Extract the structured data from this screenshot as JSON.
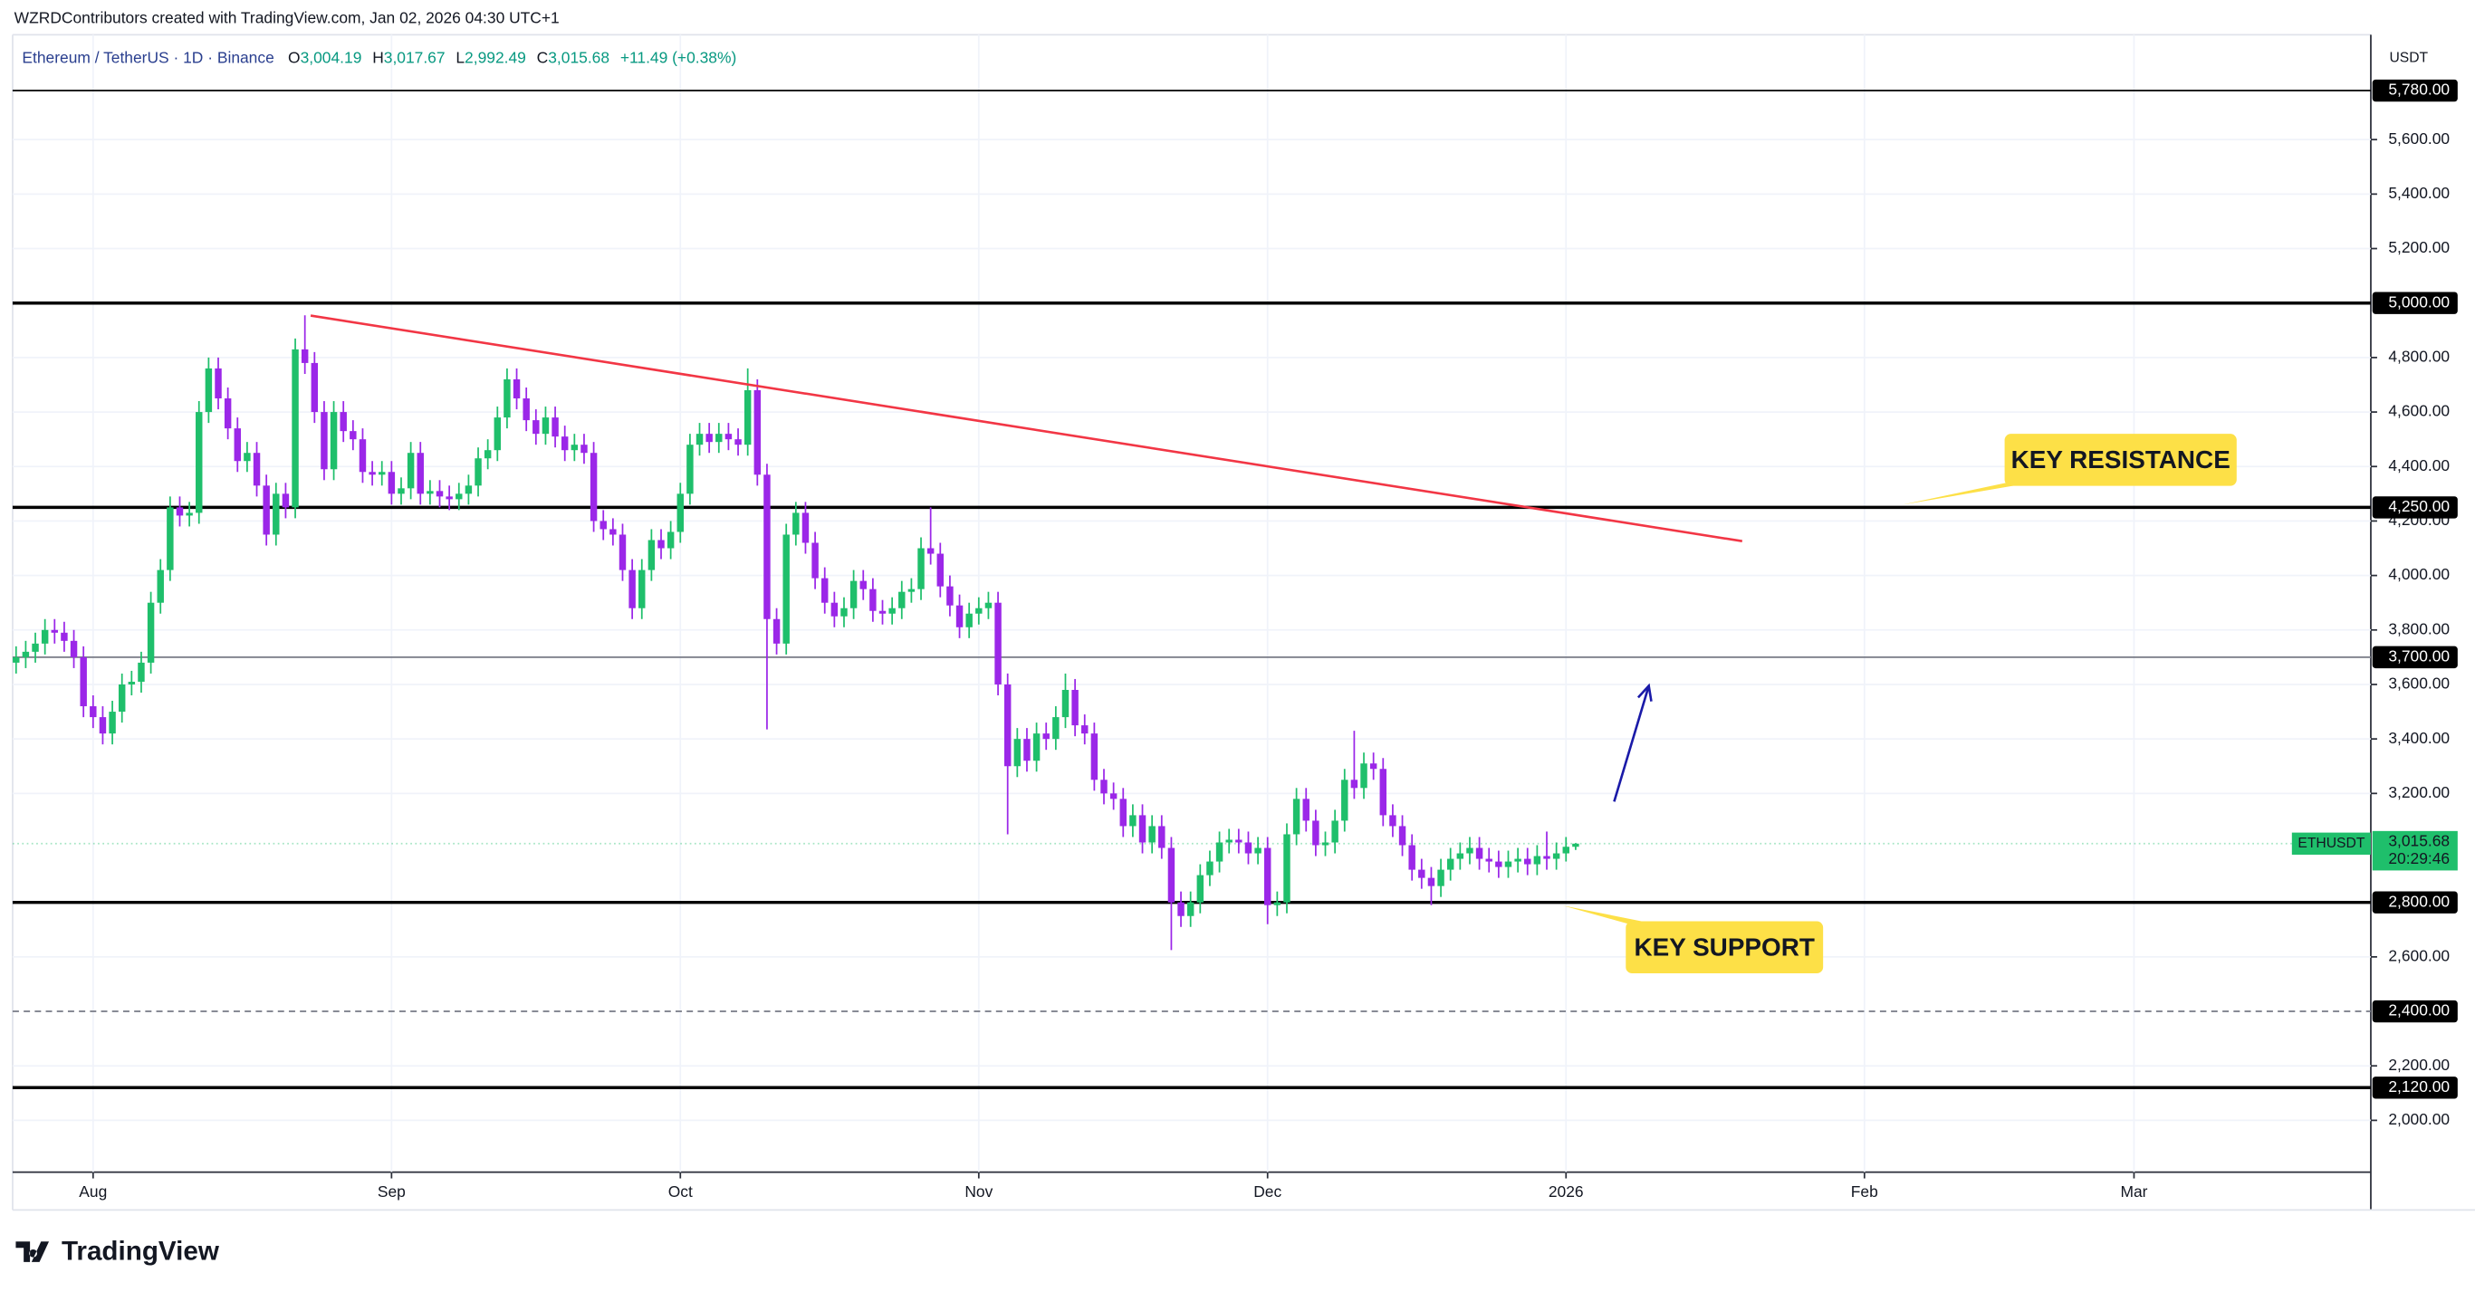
{
  "page": {
    "caption": "WZRDContributors created with TradingView.com, Jan 02, 2026 04:30 UTC+1",
    "logo": "TradingView"
  },
  "chart_data": {
    "type": "candlestick",
    "header": {
      "symbol": "Ethereum / TetherUS · 1D · Binance",
      "open_label": "O",
      "open": "3,004.19",
      "high_label": "H",
      "high": "3,017.67",
      "low_label": "L",
      "low": "2,992.49",
      "close_label": "C",
      "close": "3,015.68",
      "change": "+11.49 (+0.38%)"
    },
    "y_unit": "USDT",
    "up_color": "#1fbf6b",
    "down_color": "#9b27e8",
    "x": [
      0,
      1,
      2,
      3,
      4,
      5,
      6,
      7,
      8,
      9,
      10,
      11,
      12,
      13,
      14,
      15,
      16,
      17,
      18,
      19,
      20,
      21,
      22,
      23,
      24,
      25,
      26,
      27,
      28,
      29,
      30,
      31,
      32,
      33,
      34,
      35,
      36,
      37,
      38,
      39,
      40,
      41,
      42,
      43,
      44,
      45,
      46,
      47,
      48,
      49,
      50,
      51,
      52,
      53,
      54,
      55,
      56,
      57,
      58,
      59,
      60,
      61,
      62,
      63,
      64,
      65,
      66,
      67,
      68,
      69,
      70,
      71,
      72,
      73,
      74,
      75,
      76,
      77,
      78,
      79,
      80,
      81,
      82,
      83,
      84,
      85,
      86,
      87,
      88,
      89,
      90,
      91,
      92,
      93,
      94,
      95,
      96,
      97,
      98,
      99,
      100,
      101,
      102,
      103,
      104,
      105,
      106,
      107,
      108,
      109,
      110,
      111,
      112,
      113,
      114,
      115,
      116,
      117,
      118,
      119,
      120,
      121,
      122,
      123,
      124,
      125,
      126,
      127,
      128,
      129,
      130,
      131,
      132,
      133,
      134,
      135,
      136,
      137,
      138,
      139,
      140,
      141,
      142,
      143,
      144,
      145,
      146,
      147,
      148,
      149,
      150,
      151,
      152,
      153,
      154,
      155,
      156,
      157,
      158,
      159,
      160,
      161,
      162
    ],
    "open": [
      3680,
      3700,
      3720,
      3750,
      3800,
      3790,
      3760,
      3700,
      3520,
      3480,
      3420,
      3500,
      3600,
      3610,
      3680,
      3900,
      4020,
      4250,
      4220,
      4230,
      4600,
      4760,
      4650,
      4540,
      4420,
      4450,
      4330,
      4150,
      4300,
      4250,
      4830,
      4780,
      4600,
      4390,
      4600,
      4530,
      4500,
      4380,
      4370,
      4380,
      4300,
      4320,
      4450,
      4300,
      4310,
      4290,
      4280,
      4300,
      4330,
      4430,
      4460,
      4580,
      4720,
      4650,
      4570,
      4520,
      4580,
      4510,
      4460,
      4480,
      4450,
      4200,
      4170,
      4150,
      4020,
      3880,
      4020,
      4130,
      4100,
      4160,
      4300,
      4480,
      4520,
      4490,
      4520,
      4500,
      4480,
      4680,
      4370,
      3840,
      3750,
      4150,
      4230,
      4120,
      3990,
      3900,
      3850,
      3880,
      3980,
      3950,
      3870,
      3860,
      3880,
      3940,
      3950,
      4100,
      4080,
      3960,
      3890,
      3810,
      3860,
      3880,
      3900,
      3600,
      3300,
      3400,
      3320,
      3420,
      3400,
      3480,
      3580,
      3450,
      3420,
      3250,
      3200,
      3180,
      3080,
      3120,
      3020,
      3080,
      3000,
      2800,
      2750,
      2800,
      2900,
      2950,
      3020,
      3030,
      3020,
      2980,
      3000,
      2790,
      2800,
      3050,
      3180,
      3100,
      3010,
      3020,
      3100,
      3250,
      3220,
      3310,
      3290,
      3120,
      3080,
      3010,
      2920,
      2890,
      2860,
      2920,
      2960,
      2980,
      3000,
      2960,
      2950,
      2930,
      2950,
      2960,
      2940,
      2970,
      2960,
      2980,
      3004.19
    ],
    "high": [
      3740,
      3760,
      3790,
      3840,
      3840,
      3830,
      3800,
      3740,
      3560,
      3520,
      3540,
      3640,
      3650,
      3720,
      3940,
      4060,
      4290,
      4290,
      4270,
      4640,
      4800,
      4800,
      4690,
      4580,
      4490,
      4490,
      4370,
      4340,
      4340,
      4870,
      4955,
      4820,
      4640,
      4640,
      4640,
      4570,
      4540,
      4420,
      4420,
      4420,
      4360,
      4490,
      4490,
      4350,
      4350,
      4330,
      4340,
      4370,
      4470,
      4500,
      4620,
      4760,
      4760,
      4690,
      4610,
      4620,
      4620,
      4550,
      4520,
      4520,
      4490,
      4240,
      4210,
      4190,
      4060,
      4060,
      4170,
      4170,
      4200,
      4340,
      4520,
      4560,
      4560,
      4560,
      4560,
      4540,
      4760,
      4720,
      4410,
      3880,
      4190,
      4270,
      4270,
      4160,
      4030,
      3940,
      3920,
      4020,
      4020,
      3990,
      3910,
      3920,
      3980,
      3990,
      4140,
      4250,
      4120,
      4000,
      3930,
      3900,
      3920,
      3940,
      3940,
      3640,
      3440,
      3440,
      3460,
      3460,
      3520,
      3640,
      3620,
      3490,
      3460,
      3290,
      3240,
      3220,
      3160,
      3160,
      3120,
      3120,
      3040,
      2840,
      2840,
      2940,
      2990,
      3060,
      3070,
      3070,
      3060,
      3040,
      3040,
      2840,
      3090,
      3220,
      3220,
      3140,
      3060,
      3140,
      3290,
      3430,
      3350,
      3350,
      3330,
      3160,
      3120,
      3050,
      2960,
      2930,
      2960,
      3000,
      3020,
      3040,
      3040,
      3000,
      2990,
      2990,
      3000,
      3000,
      3010,
      3060,
      3020,
      3040,
      3017.67
    ],
    "low": [
      3640,
      3660,
      3680,
      3710,
      3750,
      3720,
      3660,
      3480,
      3440,
      3380,
      3380,
      3460,
      3560,
      3570,
      3640,
      3860,
      3980,
      4180,
      4180,
      4190,
      4560,
      4610,
      4500,
      4380,
      4380,
      4290,
      4110,
      4110,
      4210,
      4210,
      4740,
      4560,
      4350,
      4350,
      4490,
      4460,
      4340,
      4330,
      4330,
      4260,
      4260,
      4280,
      4260,
      4260,
      4250,
      4240,
      4240,
      4260,
      4290,
      4390,
      4420,
      4540,
      4610,
      4530,
      4480,
      4480,
      4470,
      4420,
      4420,
      4410,
      4160,
      4130,
      4110,
      3980,
      3840,
      3840,
      3980,
      4060,
      4060,
      4120,
      4260,
      4440,
      4450,
      4450,
      4460,
      4440,
      4440,
      4330,
      3435,
      3710,
      3710,
      4110,
      4080,
      3950,
      3860,
      3810,
      3810,
      3840,
      3910,
      3830,
      3820,
      3820,
      3840,
      3900,
      3910,
      4040,
      3920,
      3850,
      3770,
      3770,
      3820,
      3840,
      3560,
      3050,
      3260,
      3280,
      3280,
      3360,
      3360,
      3440,
      3410,
      3380,
      3210,
      3160,
      3140,
      3040,
      3040,
      2980,
      2980,
      2960,
      2625,
      2710,
      2710,
      2760,
      2860,
      2910,
      2980,
      2980,
      2940,
      2940,
      2720,
      2750,
      2760,
      3010,
      3060,
      2970,
      2970,
      2980,
      3060,
      3180,
      3180,
      3250,
      3080,
      3040,
      2970,
      2880,
      2850,
      2790,
      2820,
      2880,
      2920,
      2940,
      2920,
      2910,
      2890,
      2890,
      2910,
      2900,
      2900,
      2920,
      2920,
      2950,
      2992.49
    ],
    "close": [
      3700,
      3720,
      3750,
      3800,
      3790,
      3760,
      3700,
      3520,
      3480,
      3420,
      3500,
      3600,
      3610,
      3680,
      3900,
      4020,
      4250,
      4220,
      4230,
      4600,
      4760,
      4650,
      4540,
      4420,
      4450,
      4330,
      4150,
      4300,
      4250,
      4830,
      4780,
      4600,
      4390,
      4600,
      4530,
      4500,
      4380,
      4370,
      4380,
      4300,
      4320,
      4450,
      4300,
      4310,
      4290,
      4280,
      4300,
      4330,
      4430,
      4460,
      4580,
      4720,
      4650,
      4570,
      4520,
      4580,
      4510,
      4460,
      4480,
      4450,
      4200,
      4170,
      4150,
      4020,
      3880,
      4020,
      4130,
      4100,
      4160,
      4300,
      4480,
      4520,
      4490,
      4520,
      4500,
      4480,
      4680,
      4370,
      3840,
      3750,
      4150,
      4230,
      4120,
      3990,
      3900,
      3850,
      3880,
      3980,
      3950,
      3870,
      3860,
      3880,
      3940,
      3950,
      4100,
      4080,
      3960,
      3890,
      3810,
      3860,
      3880,
      3900,
      3600,
      3300,
      3400,
      3320,
      3420,
      3400,
      3480,
      3580,
      3450,
      3420,
      3250,
      3200,
      3180,
      3080,
      3120,
      3020,
      3080,
      3000,
      2800,
      2750,
      2800,
      2900,
      2950,
      3020,
      3030,
      3020,
      2980,
      3000,
      2790,
      2800,
      3050,
      3180,
      3100,
      3010,
      3020,
      3100,
      3250,
      3220,
      3310,
      3290,
      3120,
      3080,
      3010,
      2920,
      2890,
      2860,
      2920,
      2960,
      2980,
      3000,
      2960,
      2950,
      2930,
      2950,
      2960,
      2940,
      2970,
      2960,
      2980,
      3004.19,
      3015.68
    ],
    "xlim": [
      -0.36,
      244.6
    ],
    "xticks": [
      {
        "value": 8,
        "label": "Aug"
      },
      {
        "value": 39,
        "label": "Sep"
      },
      {
        "value": 69,
        "label": "Oct"
      },
      {
        "value": 100,
        "label": "Nov"
      },
      {
        "value": 130,
        "label": "Dec"
      },
      {
        "value": 161,
        "label": "2026"
      },
      {
        "value": 192,
        "label": "Feb"
      },
      {
        "value": 220,
        "label": "Mar"
      }
    ],
    "ylim": [
      1810,
      5985
    ],
    "yticks": [
      {
        "value": 2000,
        "label": "2,000.00"
      },
      {
        "value": 2200,
        "label": "2,200.00"
      },
      {
        "value": 2600,
        "label": "2,600.00"
      },
      {
        "value": 3200,
        "label": "3,200.00"
      },
      {
        "value": 3400,
        "label": "3,400.00"
      },
      {
        "value": 3600,
        "label": "3,600.00"
      },
      {
        "value": 3800,
        "label": "3,800.00"
      },
      {
        "value": 4000,
        "label": "4,000.00"
      },
      {
        "value": 4200,
        "label": "4,200.00"
      },
      {
        "value": 4400,
        "label": "4,400.00"
      },
      {
        "value": 4600,
        "label": "4,600.00"
      },
      {
        "value": 4800,
        "label": "4,800.00"
      },
      {
        "value": 5200,
        "label": "5,200.00"
      },
      {
        "value": 5400,
        "label": "5,400.00"
      },
      {
        "value": 5600,
        "label": "5,600.00"
      }
    ],
    "grid": true,
    "levels": [
      {
        "value": 5780,
        "label": "5,780.00",
        "color": "#000000",
        "style": "thin"
      },
      {
        "value": 5000,
        "label": "5,000.00",
        "color": "#000000",
        "style": "thick"
      },
      {
        "value": 4250,
        "label": "4,250.00",
        "color": "#000000",
        "style": "thick"
      },
      {
        "value": 3700,
        "label": "3,700.00",
        "color": "#787b86",
        "style": "thin"
      },
      {
        "value": 2800,
        "label": "2,800.00",
        "color": "#000000",
        "style": "thick"
      },
      {
        "value": 2400,
        "label": "2,400.00",
        "color": "#787b86",
        "style": "dashed"
      },
      {
        "value": 2120,
        "label": "2,120.00",
        "color": "#000000",
        "style": "thick"
      }
    ],
    "trendline": {
      "x": [
        30.6,
        179.3
      ],
      "y": [
        4954,
        4126
      ],
      "color": "#f23645"
    },
    "arrow": {
      "x": [
        166,
        169.6
      ],
      "y": [
        3170,
        3595
      ],
      "color": "#1a1aa8"
    },
    "annotations": [
      {
        "text": "KEY RESISTANCE",
        "color": "#fde047"
      },
      {
        "text": "KEY SUPPORT",
        "color": "#fde047"
      }
    ],
    "last_price": {
      "value": 3015.68,
      "label": "3,015.68",
      "symbol": "ETHUSDT",
      "countdown": "20:29:46",
      "color": "#1fbf6b"
    }
  }
}
